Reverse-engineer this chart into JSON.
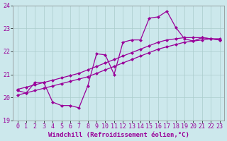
{
  "xlabel": "Windchill (Refroidissement éolien,°C)",
  "background_color": "#cce8ec",
  "grid_color": "#aacccc",
  "line_color": "#990099",
  "x_min": -0.5,
  "x_max": 23.5,
  "y_min": 19,
  "y_max": 24,
  "x_ticks": [
    0,
    1,
    2,
    3,
    4,
    5,
    6,
    7,
    8,
    9,
    10,
    11,
    12,
    13,
    14,
    15,
    16,
    17,
    18,
    19,
    20,
    21,
    22,
    23
  ],
  "y_ticks": [
    19,
    20,
    21,
    22,
    23,
    24
  ],
  "s1_x": [
    0,
    1,
    2,
    3,
    4,
    5,
    6,
    7,
    8,
    9,
    10,
    11,
    12,
    13,
    14,
    15,
    16,
    17,
    18,
    19,
    20,
    21,
    22,
    23
  ],
  "s1_y": [
    20.3,
    20.2,
    20.65,
    20.65,
    19.8,
    19.65,
    19.65,
    19.55,
    20.5,
    21.9,
    21.85,
    21.0,
    22.4,
    22.5,
    22.5,
    23.45,
    23.5,
    23.75,
    23.05,
    22.55,
    22.45,
    22.6,
    22.55,
    22.5
  ],
  "s2_x": [
    0,
    1,
    2,
    3,
    4,
    5,
    6,
    7,
    8,
    9,
    10,
    11,
    12,
    13,
    14,
    15,
    16,
    17,
    18,
    19,
    20,
    21,
    22,
    23
  ],
  "s2_y": [
    20.1,
    20.2,
    20.3,
    20.4,
    20.5,
    20.6,
    20.7,
    20.8,
    20.9,
    21.05,
    21.2,
    21.35,
    21.5,
    21.65,
    21.8,
    21.95,
    22.1,
    22.2,
    22.3,
    22.4,
    22.45,
    22.5,
    22.55,
    22.55
  ],
  "s3_x": [
    0,
    1,
    2,
    3,
    4,
    5,
    6,
    7,
    8,
    9,
    10,
    11,
    12,
    13,
    14,
    15,
    16,
    17,
    18,
    19,
    20,
    21,
    22,
    23
  ],
  "s3_y": [
    20.35,
    20.45,
    20.55,
    20.65,
    20.75,
    20.85,
    20.95,
    21.05,
    21.2,
    21.35,
    21.5,
    21.65,
    21.8,
    21.95,
    22.1,
    22.25,
    22.4,
    22.5,
    22.55,
    22.6,
    22.6,
    22.6,
    22.55,
    22.5
  ],
  "font_size_label": 6.5,
  "font_size_tick": 6,
  "marker_size": 2.5,
  "line_width": 0.9
}
